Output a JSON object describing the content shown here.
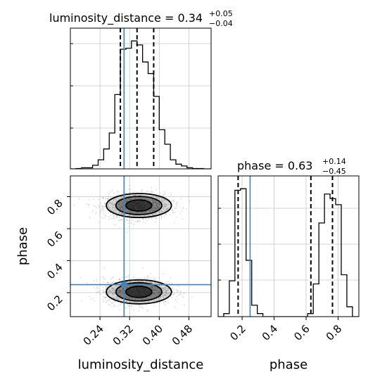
{
  "chart_data": {
    "type": "corner",
    "parameters": [
      "luminosity_distance",
      "phase"
    ],
    "titles": {
      "luminosity_distance": {
        "prefix": "luminosity_distance = ",
        "value": "0.34",
        "plus": "+0.05",
        "minus": "−0.04"
      },
      "phase": {
        "prefix": "phase = ",
        "value": "0.63",
        "plus": "+0.14",
        "minus": "−0.45"
      }
    },
    "axis_labels": {
      "x1": "luminosity_distance",
      "x2": "phase",
      "y": "phase"
    },
    "ranges": {
      "luminosity_distance": [
        0.16,
        0.54
      ],
      "phase": [
        0.05,
        0.93
      ]
    },
    "ticks": {
      "luminosity_distance": {
        "values": [
          0.24,
          0.32,
          0.4,
          0.48
        ],
        "labels": [
          "0.24",
          "0.32",
          "0.40",
          "0.48"
        ]
      },
      "phase_y": {
        "values": [
          0.2,
          0.4,
          0.6,
          0.8
        ],
        "labels": [
          "0.2",
          "0.4",
          "0.6",
          "0.8"
        ]
      },
      "phase_x": {
        "values": [
          0.2,
          0.4,
          0.6,
          0.8
        ],
        "labels": [
          "0.2",
          "0.4",
          "0.6",
          "0.8"
        ]
      }
    },
    "truth": {
      "luminosity_distance": 0.305,
      "phase": 0.25
    },
    "quantiles": {
      "luminosity_distance": [
        0.295,
        0.34,
        0.385
      ],
      "phase": [
        0.175,
        0.63,
        0.765
      ]
    },
    "hist_luminosity_distance": {
      "edges": [
        0.16,
        0.175,
        0.19,
        0.205,
        0.22,
        0.235,
        0.25,
        0.265,
        0.28,
        0.295,
        0.31,
        0.325,
        0.34,
        0.355,
        0.37,
        0.385,
        0.4,
        0.415,
        0.43,
        0.445,
        0.46,
        0.475,
        0.49,
        0.505,
        0.52,
        0.54
      ],
      "counts": [
        0,
        1,
        3,
        3,
        10,
        25,
        55,
        99,
        205,
        330,
        333,
        353,
        342,
        295,
        263,
        200,
        108,
        68,
        25,
        13,
        8,
        3,
        1,
        1,
        0
      ]
    },
    "hist_phase": {
      "edges": [
        0.05,
        0.085,
        0.12,
        0.155,
        0.19,
        0.225,
        0.26,
        0.295,
        0.33,
        0.365,
        0.4,
        0.435,
        0.47,
        0.505,
        0.54,
        0.575,
        0.61,
        0.645,
        0.68,
        0.715,
        0.75,
        0.785,
        0.82,
        0.855,
        0.89,
        0.93
      ],
      "counts": [
        0,
        4,
        47,
        166,
        168,
        74,
        15,
        4,
        0,
        0,
        0,
        0,
        0,
        0,
        0,
        0,
        4,
        43,
        123,
        161,
        155,
        147,
        55,
        13,
        0
      ]
    },
    "scatter_2d": {
      "clusters": [
        {
          "center": [
            0.34,
            0.74
          ],
          "sd": [
            0.045,
            0.04
          ]
        },
        {
          "center": [
            0.34,
            0.21
          ],
          "sd": [
            0.045,
            0.04
          ]
        }
      ],
      "contours": [
        {
          "cx": 0.345,
          "cy": 0.745,
          "rx": 0.035,
          "ry": 0.035
        },
        {
          "cx": 0.345,
          "cy": 0.745,
          "rx": 0.062,
          "ry": 0.057
        },
        {
          "cx": 0.345,
          "cy": 0.745,
          "rx": 0.088,
          "ry": 0.075
        },
        {
          "cx": 0.345,
          "cy": 0.205,
          "rx": 0.035,
          "ry": 0.035
        },
        {
          "cx": 0.345,
          "cy": 0.205,
          "rx": 0.062,
          "ry": 0.057
        },
        {
          "cx": 0.345,
          "cy": 0.205,
          "rx": 0.088,
          "ry": 0.075
        }
      ]
    },
    "colors": {
      "hist": "#000000",
      "truth": "#4682b4",
      "grid": "#c8c8c8",
      "points": "#9a9a9a",
      "density": "#000000"
    }
  }
}
